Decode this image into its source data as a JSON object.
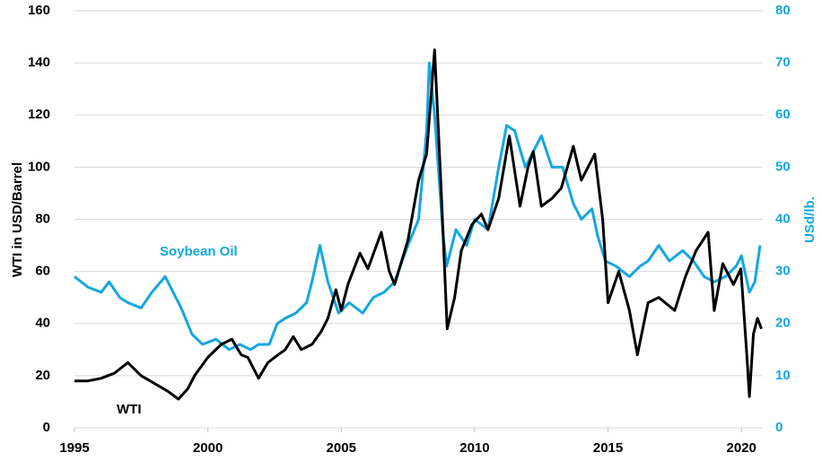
{
  "chart_data": {
    "type": "line",
    "ylabel": "WTI in USD/Barrel",
    "y2label": "USd/lb.",
    "xlim": [
      1995,
      2020.8
    ],
    "xticks": [
      1995,
      2000,
      2005,
      2010,
      2015,
      2020
    ],
    "ylim": [
      0,
      160
    ],
    "yticks": [
      0,
      20,
      40,
      60,
      80,
      100,
      120,
      140,
      160
    ],
    "y2lim": [
      0,
      80
    ],
    "y2ticks": [
      0,
      10,
      20,
      30,
      40,
      50,
      60,
      70,
      80
    ],
    "grid": true,
    "series": [
      {
        "name": "Soybean Oil",
        "color": "#14a7e0",
        "axis": "y2",
        "x": [
          1995.0,
          1995.5,
          1996.0,
          1996.3,
          1996.7,
          1997.0,
          1997.5,
          1997.9,
          1998.4,
          1998.7,
          1999.0,
          1999.4,
          1999.8,
          2000.3,
          2000.8,
          2001.2,
          2001.6,
          2001.9,
          2002.3,
          2002.6,
          2002.9,
          2003.3,
          2003.7,
          2003.9,
          2004.2,
          2004.5,
          2004.9,
          2005.3,
          2005.8,
          2006.2,
          2006.6,
          2007.0,
          2007.5,
          2007.9,
          2008.2,
          2008.3,
          2008.5,
          2008.8,
          2008.95,
          2009.3,
          2009.7,
          2010.0,
          2010.5,
          2010.9,
          2011.2,
          2011.5,
          2011.9,
          2012.2,
          2012.5,
          2012.9,
          2013.3,
          2013.7,
          2014.0,
          2014.4,
          2014.6,
          2014.9,
          2015.3,
          2015.8,
          2016.2,
          2016.5,
          2016.9,
          2017.3,
          2017.8,
          2018.2,
          2018.6,
          2018.98,
          2019.4,
          2019.8,
          2020.0,
          2020.3,
          2020.5,
          2020.7
        ],
        "values": [
          29,
          27,
          26,
          28,
          25,
          24,
          23,
          26,
          29,
          26,
          23,
          18,
          16,
          17,
          15,
          16,
          15,
          16,
          16,
          20,
          21,
          22,
          24,
          28,
          35,
          28,
          22,
          24,
          22,
          25,
          26,
          28,
          35,
          40,
          57,
          70,
          60,
          38,
          31,
          38,
          35,
          40,
          38,
          50,
          58,
          57,
          50,
          53,
          56,
          50,
          50,
          43,
          40,
          42,
          37,
          32,
          31,
          29,
          31,
          32,
          35,
          32,
          34,
          32,
          29,
          28,
          29,
          31,
          33,
          26,
          28,
          35
        ]
      },
      {
        "name": "WTI",
        "color": "#000000",
        "axis": "y",
        "x": [
          1995.0,
          1995.5,
          1996.0,
          1996.5,
          1997.0,
          1997.5,
          1998.0,
          1998.5,
          1998.9,
          1999.25,
          1999.5,
          2000.0,
          2000.5,
          2000.9,
          2001.25,
          2001.5,
          2001.9,
          2002.25,
          2002.5,
          2002.9,
          2003.2,
          2003.5,
          2003.9,
          2004.25,
          2004.5,
          2004.8,
          2005.0,
          2005.25,
          2005.7,
          2006.0,
          2006.5,
          2006.8,
          2007.0,
          2007.5,
          2007.9,
          2008.2,
          2008.5,
          2008.75,
          2008.97,
          2009.25,
          2009.5,
          2009.9,
          2010.25,
          2010.5,
          2010.9,
          2011.3,
          2011.7,
          2012.0,
          2012.2,
          2012.5,
          2012.9,
          2013.25,
          2013.7,
          2014.0,
          2014.5,
          2014.8,
          2015.0,
          2015.4,
          2015.8,
          2016.1,
          2016.5,
          2016.9,
          2017.5,
          2017.9,
          2018.3,
          2018.75,
          2018.98,
          2019.3,
          2019.7,
          2019.98,
          2020.2,
          2020.3,
          2020.45,
          2020.6,
          2020.75
        ],
        "values": [
          18,
          18,
          19,
          21,
          25,
          20,
          17,
          14,
          11,
          15,
          20,
          27,
          32,
          34,
          28,
          27,
          19,
          25,
          27,
          30,
          35,
          30,
          32,
          37,
          42,
          53,
          45,
          55,
          67,
          61,
          75,
          60,
          55,
          72,
          95,
          105,
          145,
          90,
          38,
          50,
          68,
          78,
          82,
          76,
          88,
          112,
          85,
          100,
          106,
          85,
          88,
          92,
          108,
          95,
          105,
          80,
          48,
          60,
          45,
          28,
          48,
          50,
          45,
          58,
          68,
          75,
          45,
          63,
          55,
          61,
          28,
          12,
          36,
          42,
          38
        ]
      }
    ]
  }
}
